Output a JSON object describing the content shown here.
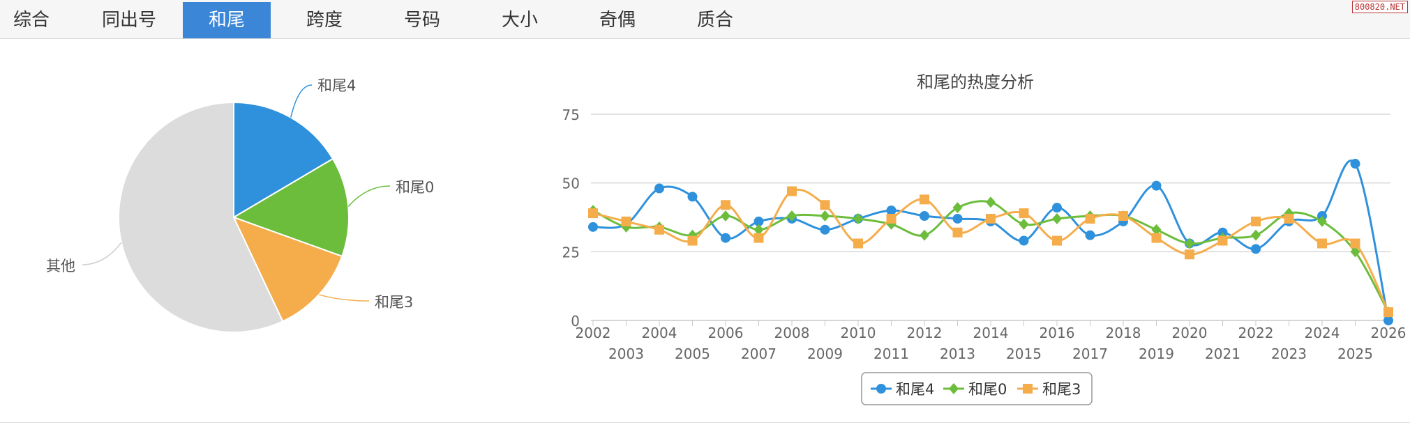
{
  "tabs": [
    {
      "label": "综合",
      "active": false
    },
    {
      "label": "同出号",
      "active": false
    },
    {
      "label": "和尾",
      "active": true
    },
    {
      "label": "跨度",
      "active": false
    },
    {
      "label": "号码",
      "active": false
    },
    {
      "label": "大小",
      "active": false
    },
    {
      "label": "奇偶",
      "active": false
    },
    {
      "label": "质合",
      "active": false
    }
  ],
  "watermark": "800820.NET",
  "colors": {
    "accent": "#3b86d6",
    "series1": "#2f91dc",
    "series2": "#6cbd3c",
    "series3": "#f5ad4b",
    "other": "#dcdcdc"
  },
  "chart_data": [
    {
      "type": "pie",
      "slices": [
        {
          "label": "和尾4",
          "value": 16.5,
          "color": "#2f91dc"
        },
        {
          "label": "和尾0",
          "value": 14,
          "color": "#6cbd3c"
        },
        {
          "label": "和尾3",
          "value": 12.5,
          "color": "#f5ad4b"
        },
        {
          "label": "其他",
          "value": 57,
          "color": "#dcdcdc"
        }
      ]
    },
    {
      "type": "line",
      "title": "和尾的热度分析",
      "x": [
        "2002",
        "2003",
        "2004",
        "2005",
        "2006",
        "2007",
        "2008",
        "2009",
        "2010",
        "2011",
        "2012",
        "2013",
        "2014",
        "2015",
        "2016",
        "2017",
        "2018",
        "2019",
        "2020",
        "2021",
        "2022",
        "2023",
        "2024",
        "2025",
        "2026"
      ],
      "ylim": [
        0,
        75
      ],
      "yticks": [
        0,
        25,
        50,
        75
      ],
      "grid": true,
      "legend_position": "bottom",
      "series": [
        {
          "name": "和尾4",
          "color": "#2f91dc",
          "marker": "circle",
          "values": [
            34,
            35,
            48,
            45,
            30,
            36,
            37,
            33,
            37,
            40,
            38,
            37,
            36,
            29,
            41,
            31,
            36,
            49,
            28,
            32,
            26,
            36,
            38,
            57,
            0
          ]
        },
        {
          "name": "和尾0",
          "color": "#6cbd3c",
          "marker": "diamond",
          "values": [
            40,
            34,
            34,
            31,
            38,
            33,
            38,
            38,
            37,
            35,
            31,
            41,
            43,
            35,
            37,
            38,
            38,
            33,
            28,
            30,
            31,
            39,
            36,
            25,
            3
          ]
        },
        {
          "name": "和尾3",
          "color": "#f5ad4b",
          "marker": "square",
          "values": [
            39,
            36,
            33,
            29,
            42,
            30,
            47,
            42,
            28,
            37,
            44,
            32,
            37,
            39,
            29,
            37,
            38,
            30,
            24,
            29,
            36,
            37,
            28,
            28,
            3
          ]
        }
      ]
    }
  ]
}
